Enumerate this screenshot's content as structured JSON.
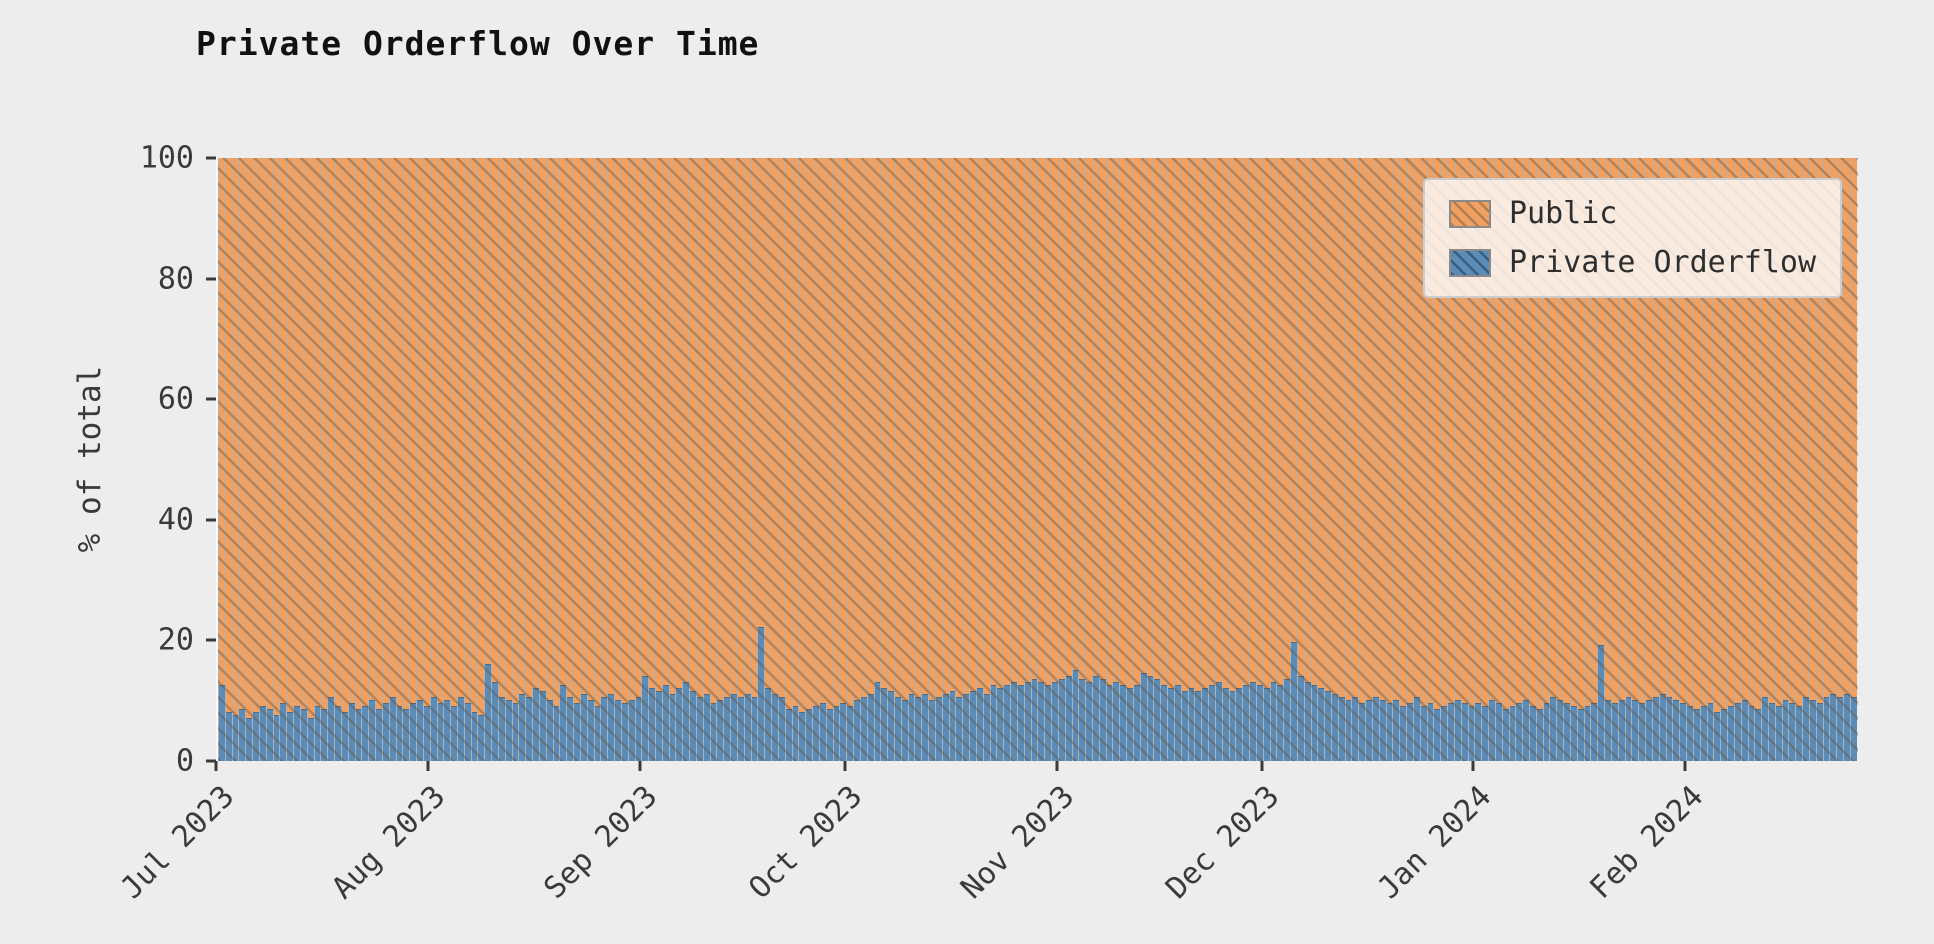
{
  "legend": {
    "items": [
      {
        "label": "Public"
      },
      {
        "label": "Private Orderflow"
      }
    ]
  },
  "chart_data": {
    "type": "bar",
    "stacked": true,
    "normalized_to_100": true,
    "title": "Private Orderflow Over Time",
    "xlabel": "",
    "ylabel": "% of total",
    "ylim": [
      0,
      100
    ],
    "yticks": [
      0,
      20,
      40,
      60,
      80,
      100
    ],
    "x_start": "2023-07-01",
    "x_frequency": "daily",
    "total_days": 240,
    "xtick_labels": [
      "Jul 2023",
      "Aug 2023",
      "Sep 2023",
      "Oct 2023",
      "Nov 2023",
      "Dec 2023",
      "Jan 2024",
      "Feb 2024"
    ],
    "xtick_day_index": [
      0,
      31,
      62,
      92,
      123,
      153,
      184,
      215
    ],
    "legend_position": "upper right",
    "grid": false,
    "figure_background": "#ededed",
    "series": [
      {
        "name": "Private Orderflow",
        "color": "#5b8cb8",
        "values": [
          12.5,
          8,
          7.5,
          8.5,
          7,
          8,
          9,
          8.5,
          7.5,
          9.5,
          8,
          9,
          8.5,
          7,
          9,
          8.5,
          10.5,
          9,
          8,
          9.5,
          8.5,
          9,
          10,
          8.5,
          9.5,
          10.5,
          9,
          8.5,
          9.5,
          10,
          9,
          10.5,
          9.5,
          10,
          9,
          10.5,
          9.5,
          8,
          7.5,
          16,
          13,
          10.5,
          10,
          9.5,
          11,
          10.5,
          12,
          11.5,
          10,
          9,
          12.5,
          10.5,
          9.5,
          11,
          10,
          9,
          10.5,
          11,
          10,
          9.5,
          10,
          10.5,
          14,
          12,
          11.5,
          12.5,
          11,
          12,
          13,
          11.5,
          10.5,
          11,
          9.5,
          10,
          10.5,
          11,
          10.5,
          11,
          10.5,
          22,
          12,
          11,
          10.5,
          8.5,
          9,
          8,
          8.5,
          9,
          9.5,
          8.5,
          9,
          9.5,
          9,
          10,
          10.5,
          11,
          13,
          12,
          11.5,
          10.5,
          10,
          11,
          10.5,
          11,
          10,
          10.5,
          11,
          11.5,
          10.5,
          11,
          11.5,
          12,
          11,
          12.5,
          12,
          12.5,
          13,
          12.5,
          13,
          13.5,
          13,
          12.5,
          13,
          13.5,
          14,
          15,
          13.5,
          13,
          14,
          13.5,
          12.5,
          13,
          12.5,
          12,
          12.5,
          14.5,
          14,
          13.5,
          12.5,
          12,
          12.5,
          11.5,
          12,
          11.5,
          12,
          12.5,
          13,
          12,
          11.5,
          12,
          12.5,
          13,
          12.5,
          12,
          13,
          12.5,
          13.5,
          19.5,
          14,
          13,
          12.5,
          12,
          11.5,
          11,
          10.5,
          10,
          10.5,
          9.5,
          10,
          10.5,
          10,
          9.5,
          10,
          9,
          9.5,
          10.5,
          9,
          9.5,
          8.5,
          9,
          9.5,
          10,
          9.5,
          9,
          9.5,
          9,
          10,
          9.5,
          8.5,
          9,
          9.5,
          10,
          9,
          8.5,
          9.5,
          10.5,
          10,
          9.5,
          9,
          8.5,
          9,
          9.5,
          19,
          10,
          9.5,
          10,
          10.5,
          10,
          9.5,
          10,
          10.5,
          11,
          10.5,
          10,
          9.5,
          9,
          8.5,
          9,
          9.5,
          8,
          8.5,
          9,
          9.5,
          10,
          9,
          8.5,
          10.5,
          9.5,
          9,
          10,
          9.5,
          9,
          10.5,
          10,
          9.5,
          10.5,
          11,
          10.5,
          11,
          10.5
        ]
      },
      {
        "name": "Public",
        "color": "#f2a05f",
        "derivation": "100 minus Private Orderflow for each day"
      }
    ]
  }
}
